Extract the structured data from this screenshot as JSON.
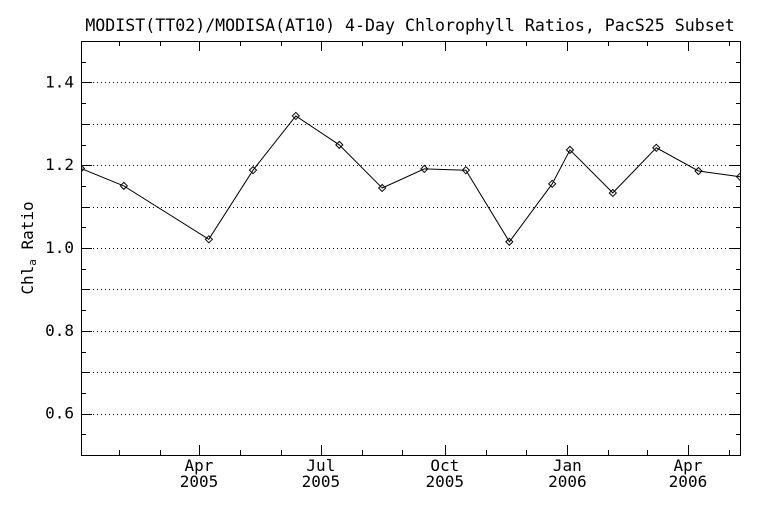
{
  "page": {
    "background_color": "#ffffff",
    "foreground_color": "#000000"
  },
  "chart_data": {
    "type": "line",
    "title": "MODIST(TT02)/MODISA(AT10) 4-Day Chlorophyll Ratios, PacS25 Subset",
    "ylabel": "Chl_a Ratio",
    "ylabel_parts": {
      "main": "Chl",
      "sub": "a",
      "rest": " Ratio"
    },
    "xlabel": "",
    "ylim": [
      0.5,
      1.5
    ],
    "xlim_approx": [
      "2005-01-01",
      "2006-05-09"
    ],
    "grid": "horizontal dotted lines every 0.1",
    "legend_position": "none",
    "line_color": "#000000",
    "background": "#ffffff",
    "marker": "open-diamond",
    "y_gridlines": [
      0.6,
      0.7,
      0.8,
      0.9,
      1.0,
      1.1,
      1.2,
      1.3,
      1.4
    ],
    "y_minor_tick_step": 0.05,
    "y_tick_labels": [
      {
        "v": 0.6,
        "label": "0.6"
      },
      {
        "v": 0.8,
        "label": "0.8"
      },
      {
        "v": 1.0,
        "label": "1.0"
      },
      {
        "v": 1.2,
        "label": "1.2"
      },
      {
        "v": 1.4,
        "label": "1.4"
      }
    ],
    "x_axis": {
      "major_ticks": [
        {
          "xf": 0.179,
          "month": "Apr",
          "year": "2005"
        },
        {
          "xf": 0.364,
          "month": "Jul",
          "year": "2005"
        },
        {
          "xf": 0.552,
          "month": "Oct",
          "year": "2005"
        },
        {
          "xf": 0.738,
          "month": "Jan",
          "year": "2006"
        },
        {
          "xf": 0.921,
          "month": "Apr",
          "year": "2006"
        }
      ],
      "minor_ticks_xf": [
        0.058,
        0.12,
        0.241,
        0.303,
        0.426,
        0.487,
        0.615,
        0.675,
        0.799,
        0.859,
        0.983
      ]
    },
    "series": [
      {
        "name": "MODIST(TT02)/MODISA(AT10) 4-day chlorophyll ratio",
        "points": [
          {
            "xf": 0.0,
            "x_approx_date": "2005-01-02",
            "y": 1.192
          },
          {
            "xf": 0.065,
            "x_approx_date": "2005-02-03",
            "y": 1.15
          },
          {
            "xf": 0.194,
            "x_approx_date": "2005-04-08",
            "y": 1.021
          },
          {
            "xf": 0.261,
            "x_approx_date": "2005-05-10",
            "y": 1.188
          },
          {
            "xf": 0.326,
            "x_approx_date": "2005-06-12",
            "y": 1.319
          },
          {
            "xf": 0.392,
            "x_approx_date": "2005-07-14",
            "y": 1.249
          },
          {
            "xf": 0.457,
            "x_approx_date": "2005-08-15",
            "y": 1.145
          },
          {
            "xf": 0.521,
            "x_approx_date": "2005-09-16",
            "y": 1.191
          },
          {
            "xf": 0.584,
            "x_approx_date": "2005-10-17",
            "y": 1.188
          },
          {
            "xf": 0.65,
            "x_approx_date": "2005-11-18",
            "y": 1.015
          },
          {
            "xf": 0.715,
            "x_approx_date": "2005-12-20",
            "y": 1.155
          },
          {
            "xf": 0.742,
            "x_approx_date": "2006-01-02",
            "y": 1.237
          },
          {
            "xf": 0.807,
            "x_approx_date": "2006-02-04",
            "y": 1.133
          },
          {
            "xf": 0.873,
            "x_approx_date": "2006-03-08",
            "y": 1.242
          },
          {
            "xf": 0.937,
            "x_approx_date": "2006-04-08",
            "y": 1.186
          },
          {
            "xf": 1.0,
            "x_approx_date": "2006-05-09",
            "y": 1.172
          }
        ]
      }
    ]
  }
}
